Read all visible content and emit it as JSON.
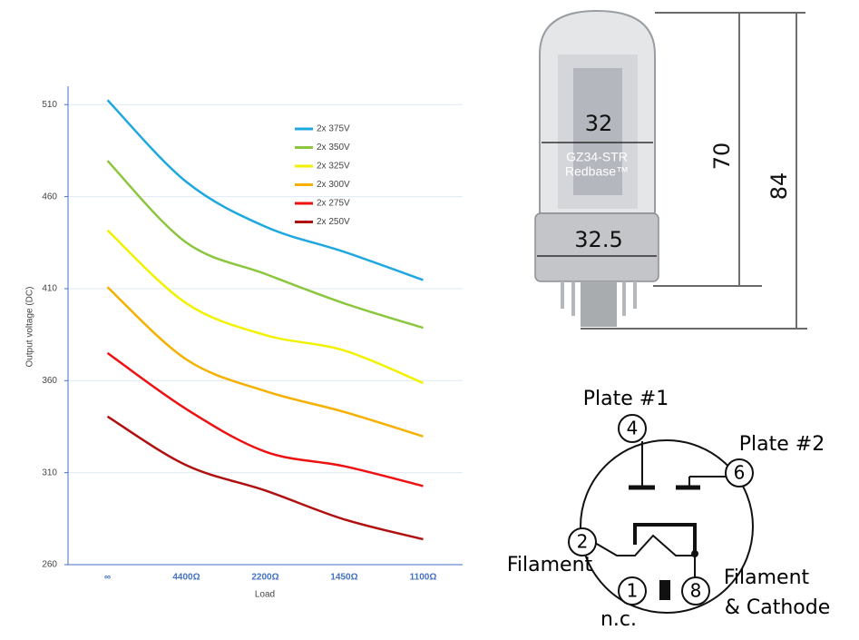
{
  "chart_data": {
    "type": "line",
    "x_label": "Load",
    "y_label": "Output voltage (DC)",
    "categories": [
      "∞",
      "4400Ω",
      "2200Ω",
      "1450Ω",
      "1100Ω"
    ],
    "series": [
      {
        "name": "2x 375V",
        "color": "#1fa8e0",
        "values": [
          512.5,
          468,
          443.7,
          430,
          414.7
        ]
      },
      {
        "name": "2x 350V",
        "color": "#8cc63f",
        "values": [
          479.5,
          435,
          418,
          402,
          388.7
        ]
      },
      {
        "name": "2x 325V",
        "color": "#f2f200",
        "values": [
          441.7,
          402,
          384.8,
          376.4,
          358.7
        ]
      },
      {
        "name": "2x 300V",
        "color": "#f5b000",
        "values": [
          410.8,
          371.5,
          354.3,
          343,
          329.7
        ]
      },
      {
        "name": "2x 275V",
        "color": "#ee1111",
        "values": [
          375,
          344.5,
          321.4,
          313.5,
          302.7
        ]
      },
      {
        "name": "2x 250V",
        "color": "#b01010",
        "values": [
          340.5,
          314,
          300.3,
          284.6,
          273.8
        ]
      }
    ],
    "ylim": [
      260,
      520
    ],
    "yticks": [
      260,
      310,
      360,
      410,
      460,
      510
    ],
    "grid": true
  },
  "tube": {
    "label_1": "GZ34-STR",
    "label_2": "Redbase™",
    "dimensions": {
      "glass_diameter": 32,
      "base_diameter": 32.5,
      "glass_height": 70,
      "total_height": 84
    }
  },
  "pinout": {
    "pins": [
      {
        "number": "4",
        "label": "Plate #1"
      },
      {
        "number": "6",
        "label": "Plate #2"
      },
      {
        "number": "2",
        "label": "Filament"
      },
      {
        "number": "1",
        "label": "n.c."
      },
      {
        "number": "8",
        "label": [
          "Filament",
          "& Cathode"
        ]
      }
    ]
  }
}
